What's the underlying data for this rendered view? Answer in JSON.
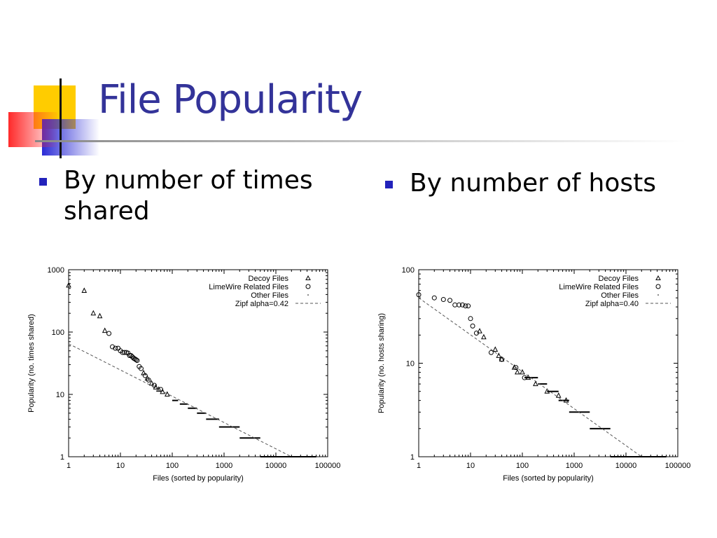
{
  "slide": {
    "title": "File Popularity",
    "bullets": [
      "By number of times shared",
      "By number of hosts"
    ]
  },
  "colors": {
    "title": "#333399",
    "bullet": "#2222bb",
    "yellow": "#ffcc00",
    "blue": "#2b2bd6",
    "red": "#ff3333"
  },
  "chart_data": [
    {
      "type": "scatter",
      "log_x": true,
      "log_y": true,
      "xlim": [
        1,
        100000
      ],
      "ylim": [
        1,
        1000
      ],
      "x_ticks": [
        "1",
        "10",
        "100",
        "1000",
        "10000",
        "100000"
      ],
      "y_ticks": [
        "1",
        "10",
        "100",
        "1000"
      ],
      "xlabel": "Files (sorted by popularity)",
      "ylabel": "Popularity (no. times shared)",
      "legend_position": "top-right",
      "series": [
        {
          "name": "Decoy Files",
          "marker": "triangle",
          "points": [
            [
              1,
              560
            ],
            [
              2,
              460
            ],
            [
              3,
              200
            ],
            [
              4,
              180
            ],
            [
              5,
              105
            ],
            [
              28,
              22
            ],
            [
              33,
              18
            ],
            [
              40,
              15
            ],
            [
              48,
              13
            ],
            [
              55,
              12
            ],
            [
              65,
              11
            ],
            [
              80,
              10
            ]
          ]
        },
        {
          "name": "LimeWire Related Files",
          "marker": "circle",
          "points": [
            [
              6,
              95
            ],
            [
              7,
              58
            ],
            [
              8,
              55
            ],
            [
              9,
              55
            ],
            [
              10,
              50
            ],
            [
              11,
              47
            ],
            [
              12,
              47
            ],
            [
              13,
              47
            ],
            [
              14,
              46
            ],
            [
              15,
              42
            ],
            [
              16,
              42
            ],
            [
              17,
              40
            ],
            [
              18,
              38
            ],
            [
              19,
              37
            ],
            [
              20,
              36
            ],
            [
              21,
              35
            ],
            [
              23,
              28
            ],
            [
              25,
              26
            ],
            [
              30,
              20
            ],
            [
              35,
              17
            ],
            [
              45,
              14
            ],
            [
              60,
              12
            ]
          ]
        },
        {
          "name": "Other Files",
          "marker": "hline",
          "segments": [
            [
              100,
              130,
              8
            ],
            [
              140,
              200,
              7
            ],
            [
              200,
              300,
              6
            ],
            [
              300,
              450,
              5
            ],
            [
              450,
              800,
              4
            ],
            [
              800,
              2000,
              3
            ],
            [
              2000,
              5000,
              2
            ],
            [
              5000,
              60000,
              1
            ]
          ]
        },
        {
          "name": "Zipf alpha=0.42",
          "marker": "dashed",
          "line": [
            [
              1,
              65
            ],
            [
              20000,
              1
            ]
          ]
        }
      ]
    },
    {
      "type": "scatter",
      "log_x": true,
      "log_y": true,
      "xlim": [
        1,
        100000
      ],
      "ylim": [
        1,
        100
      ],
      "x_ticks": [
        "1",
        "10",
        "100",
        "1000",
        "10000",
        "100000"
      ],
      "y_ticks": [
        "1",
        "10",
        "100"
      ],
      "xlabel": "Files (sorted by popularity)",
      "ylabel": "Popularity (no. hosts sharing)",
      "legend_position": "top-right",
      "series": [
        {
          "name": "Decoy Files",
          "marker": "triangle",
          "points": [
            [
              15,
              22
            ],
            [
              18,
              19
            ],
            [
              30,
              14
            ],
            [
              35,
              12
            ],
            [
              40,
              11
            ],
            [
              70,
              9
            ],
            [
              80,
              8
            ],
            [
              100,
              8
            ],
            [
              130,
              7
            ],
            [
              180,
              6
            ],
            [
              300,
              5
            ],
            [
              500,
              4.5
            ],
            [
              700,
              4
            ]
          ]
        },
        {
          "name": "LimeWire Related Files",
          "marker": "circle",
          "points": [
            [
              1,
              54
            ],
            [
              2,
              50
            ],
            [
              3,
              48
            ],
            [
              4,
              47
            ],
            [
              5,
              42
            ],
            [
              6,
              42
            ],
            [
              7,
              42
            ],
            [
              8,
              41
            ],
            [
              9,
              41
            ],
            [
              10,
              30
            ],
            [
              11,
              25
            ],
            [
              13,
              21
            ],
            [
              25,
              13
            ],
            [
              40,
              11
            ],
            [
              75,
              9
            ],
            [
              110,
              7
            ]
          ]
        },
        {
          "name": "Other Files",
          "marker": "hline",
          "segments": [
            [
              110,
              200,
              7
            ],
            [
              200,
              300,
              6
            ],
            [
              300,
              500,
              5
            ],
            [
              500,
              800,
              4
            ],
            [
              800,
              2000,
              3
            ],
            [
              2000,
              5000,
              2
            ],
            [
              5000,
              60000,
              1
            ]
          ]
        },
        {
          "name": "Zipf alpha=0.40",
          "marker": "dashed",
          "line": [
            [
              1,
              50
            ],
            [
              20000,
              1
            ]
          ]
        }
      ]
    }
  ]
}
